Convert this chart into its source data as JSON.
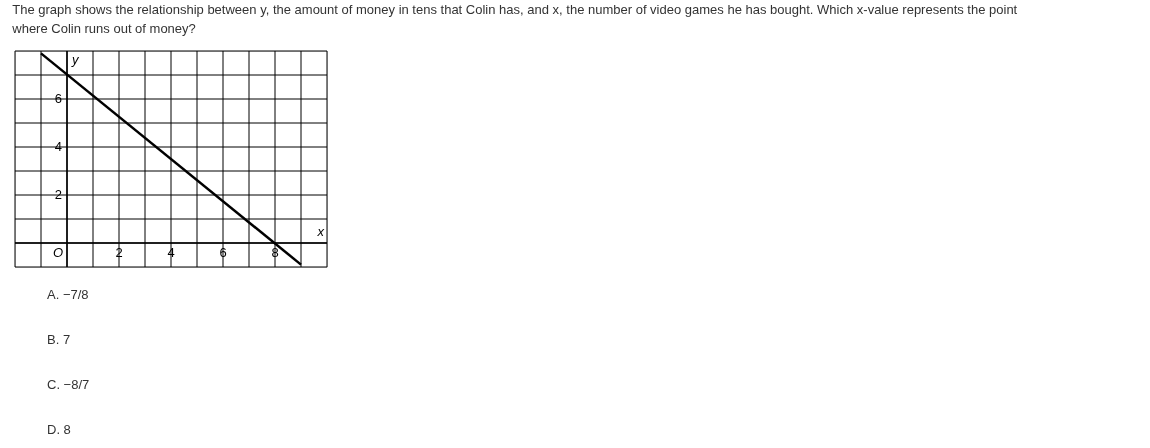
{
  "chart_data": {
    "type": "line",
    "title": "The graph shows the relationship between y, the amount of money in tens that Colin has, and x, the number of video games he has bought. Which x-value represents the point where Colin runs out of money?",
    "xlabel": "x",
    "ylabel": "y",
    "x": [
      -1,
      9
    ],
    "series": [
      {
        "color": "#000000",
        "values": [
          7.9,
          -0.9
        ]
      }
    ],
    "xlim": [
      -2,
      10
    ],
    "ylim": [
      -1,
      8
    ],
    "xticks": [
      {
        "value": -2,
        "label": null
      },
      {
        "value": -1,
        "label": null
      },
      {
        "value": 0,
        "label": "O"
      },
      {
        "value": 1,
        "label": null
      },
      2,
      {
        "value": 3,
        "label": null
      },
      4,
      {
        "value": 5,
        "label": null
      },
      6,
      {
        "value": 7,
        "label": null
      },
      8,
      {
        "value": 9,
        "label": null
      },
      {
        "value": 10,
        "label": null
      }
    ],
    "yticks": [
      {
        "value": -1,
        "label": null
      },
      {
        "value": 0,
        "label": null
      },
      {
        "value": 1,
        "label": null
      },
      2,
      {
        "value": 3,
        "label": null
      },
      4,
      {
        "value": 5,
        "label": null
      },
      6,
      {
        "value": 7,
        "label": null
      },
      {
        "value": 8,
        "label": null
      }
    ],
    "grid": true,
    "legend": false,
    "marker": "none",
    "line_style": "solid",
    "annotations": [
      "A. −7/8",
      "B. 7",
      "C. −8/7",
      "D. 8"
    ]
  }
}
